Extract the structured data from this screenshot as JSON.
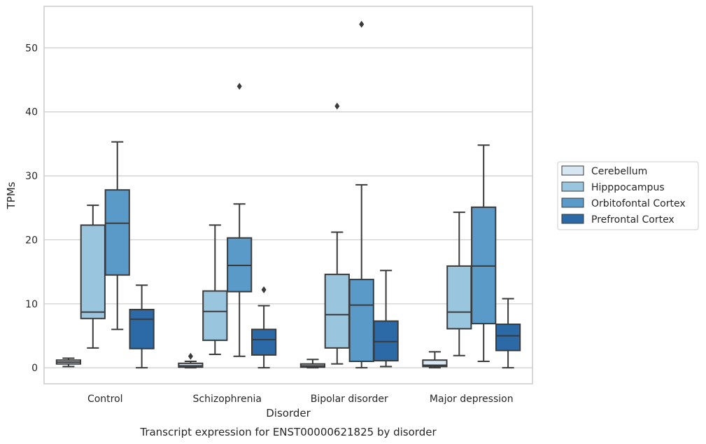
{
  "chart_data": {
    "type": "box",
    "xlabel": "Disorder",
    "ylabel": "TPMs",
    "caption": "Transcript expression for ENST00000621825 by disorder",
    "ylim": [
      -2.5,
      56.5
    ],
    "yticks": [
      0,
      10,
      20,
      30,
      40,
      50
    ],
    "grid": "horizontal",
    "legend_position": "right",
    "categories": [
      "Control",
      "Schizophrenia",
      "Bipolar disorder",
      "Major depression"
    ],
    "series": [
      {
        "name": "Cerebellum",
        "color": "#d6e6f3",
        "boxes": [
          {
            "whisker_low": 0.2,
            "q1": 0.6,
            "median": 0.9,
            "q3": 1.2,
            "whisker_high": 1.5,
            "outliers": []
          },
          {
            "whisker_low": 0.0,
            "q1": 0.1,
            "median": 0.3,
            "q3": 0.7,
            "whisker_high": 1.0,
            "outliers": [
              1.8
            ]
          },
          {
            "whisker_low": 0.0,
            "q1": 0.1,
            "median": 0.3,
            "q3": 0.6,
            "whisker_high": 1.3,
            "outliers": []
          },
          {
            "whisker_low": 0.0,
            "q1": 0.2,
            "median": 0.4,
            "q3": 1.2,
            "whisker_high": 2.5,
            "outliers": []
          }
        ]
      },
      {
        "name": "Hipppocampus",
        "color": "#9ac5df",
        "boxes": [
          {
            "whisker_low": 3.1,
            "q1": 7.7,
            "median": 8.7,
            "q3": 22.3,
            "whisker_high": 25.4,
            "outliers": []
          },
          {
            "whisker_low": 2.1,
            "q1": 4.3,
            "median": 8.8,
            "q3": 12.0,
            "whisker_high": 22.3,
            "outliers": []
          },
          {
            "whisker_low": 0.6,
            "q1": 3.1,
            "median": 8.3,
            "q3": 14.6,
            "whisker_high": 21.2,
            "outliers": [
              40.9
            ]
          },
          {
            "whisker_low": 1.9,
            "q1": 6.1,
            "median": 8.7,
            "q3": 15.9,
            "whisker_high": 24.3,
            "outliers": []
          }
        ]
      },
      {
        "name": "Orbitofontal Cortex",
        "color": "#5a9ac8",
        "boxes": [
          {
            "whisker_low": 6.0,
            "q1": 14.5,
            "median": 22.6,
            "q3": 27.8,
            "whisker_high": 35.3,
            "outliers": []
          },
          {
            "whisker_low": 1.8,
            "q1": 11.9,
            "median": 16.0,
            "q3": 20.3,
            "whisker_high": 25.6,
            "outliers": [
              44.0
            ]
          },
          {
            "whisker_low": 0.0,
            "q1": 1.0,
            "median": 9.8,
            "q3": 13.8,
            "whisker_high": 28.6,
            "outliers": [
              53.7
            ]
          },
          {
            "whisker_low": 1.0,
            "q1": 6.9,
            "median": 15.9,
            "q3": 25.1,
            "whisker_high": 34.8,
            "outliers": []
          }
        ]
      },
      {
        "name": "Prefrontal Cortex",
        "color": "#2b6aa7",
        "boxes": [
          {
            "whisker_low": 0.0,
            "q1": 3.0,
            "median": 7.6,
            "q3": 9.1,
            "whisker_high": 12.9,
            "outliers": []
          },
          {
            "whisker_low": 0.0,
            "q1": 2.0,
            "median": 4.4,
            "q3": 6.0,
            "whisker_high": 9.7,
            "outliers": [
              12.2
            ]
          },
          {
            "whisker_low": 0.2,
            "q1": 1.1,
            "median": 4.1,
            "q3": 7.3,
            "whisker_high": 15.2,
            "outliers": []
          },
          {
            "whisker_low": 0.0,
            "q1": 2.7,
            "median": 5.0,
            "q3": 6.8,
            "whisker_high": 10.8,
            "outliers": []
          }
        ]
      }
    ]
  }
}
